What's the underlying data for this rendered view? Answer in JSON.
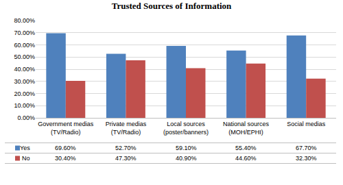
{
  "chart_data": {
    "type": "bar",
    "title": "Trusted Sources of Information",
    "categories": [
      "Government medias (TV/Radio)",
      "Private medias (TV/Radio)",
      "Local sources (poster/banners)",
      "National sources (MOH/EPHI)",
      "Social medias"
    ],
    "series": [
      {
        "name": "Yes",
        "color": "#4f81bd",
        "values": [
          69.6,
          52.7,
          59.1,
          55.4,
          67.7
        ],
        "value_labels": [
          "69.60%",
          "52.70%",
          "59.10%",
          "55.40%",
          "67.70%"
        ]
      },
      {
        "name": "No",
        "color": "#c0504d",
        "values": [
          30.4,
          47.3,
          40.9,
          44.6,
          32.3
        ],
        "value_labels": [
          "30.40%",
          "47.30%",
          "40.90%",
          "44.60%",
          "32.30%"
        ]
      }
    ],
    "ylim": [
      0,
      80
    ],
    "yticks": [
      {
        "value": 0,
        "label": "0.00%"
      },
      {
        "value": 10,
        "label": "10.00%"
      },
      {
        "value": 20,
        "label": "20.00%"
      },
      {
        "value": 30,
        "label": "30.00%"
      },
      {
        "value": 40,
        "label": "40.00%"
      },
      {
        "value": 50,
        "label": "50.00%"
      },
      {
        "value": 60,
        "label": "60.00%"
      },
      {
        "value": 70,
        "label": "70.00%"
      },
      {
        "value": 80,
        "label": "80.00%"
      }
    ],
    "grid": true
  }
}
